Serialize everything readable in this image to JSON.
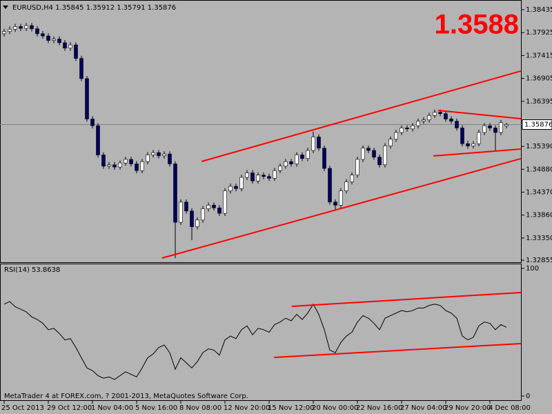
{
  "chart_data": {
    "type": "candlestick",
    "title": "EURUSD,H4  1.35845 1.35912 1.35791 1.35876",
    "big_label": "1.3588",
    "up_color": "#ffffff",
    "down_color": "#000060",
    "bid_color": "#808080",
    "trend_color": "#ff0000",
    "ylim": [
      1.3281,
      1.3862
    ],
    "yticks": [
      1.38435,
      1.37925,
      1.37415,
      1.36905,
      1.36395,
      {
        "value": 1.3539,
        "label": "1.35390"
      },
      {
        "value": 1.3488,
        "label": "1.34880"
      },
      {
        "value": 1.3437,
        "label": "1.34370"
      },
      {
        "value": 1.3386,
        "label": "1.33860"
      },
      {
        "value": 1.3335,
        "label": "1.33350"
      },
      1.32855
    ],
    "bid": 1.35876,
    "ohlc": [
      [
        1.379,
        1.3801,
        1.3784,
        1.3795
      ],
      [
        1.3795,
        1.3806,
        1.3789,
        1.38
      ],
      [
        1.38,
        1.3812,
        1.3794,
        1.3806
      ],
      [
        1.3806,
        1.3812,
        1.3796,
        1.3802
      ],
      [
        1.3802,
        1.3814,
        1.3796,
        1.3808
      ],
      [
        1.3808,
        1.3814,
        1.3795,
        1.3801
      ],
      [
        1.3801,
        1.3807,
        1.3784,
        1.379
      ],
      [
        1.379,
        1.3796,
        1.3779,
        1.3785
      ],
      [
        1.3785,
        1.3791,
        1.3769,
        1.3775
      ],
      [
        1.3775,
        1.3784,
        1.3769,
        1.3778
      ],
      [
        1.3778,
        1.3784,
        1.3764,
        1.377
      ],
      [
        1.377,
        1.3776,
        1.3752,
        1.3758
      ],
      [
        1.3758,
        1.3771,
        1.3752,
        1.3765
      ],
      [
        1.3765,
        1.3771,
        1.3729,
        1.3735
      ],
      [
        1.3735,
        1.3741,
        1.3684,
        1.369
      ],
      [
        1.369,
        1.3696,
        1.3594,
        1.36
      ],
      [
        1.36,
        1.3606,
        1.3579,
        1.3585
      ],
      [
        1.3585,
        1.3591,
        1.3514,
        1.352
      ],
      [
        1.352,
        1.3526,
        1.3489,
        1.3495
      ],
      [
        1.3495,
        1.3504,
        1.3489,
        1.3498
      ],
      [
        1.3498,
        1.3504,
        1.3487,
        1.3493
      ],
      [
        1.3493,
        1.3508,
        1.3487,
        1.3502
      ],
      [
        1.3502,
        1.3516,
        1.3496,
        1.351
      ],
      [
        1.351,
        1.3516,
        1.3494,
        1.35
      ],
      [
        1.35,
        1.3506,
        1.3479,
        1.3485
      ],
      [
        1.3485,
        1.3511,
        1.3479,
        1.3505
      ],
      [
        1.3505,
        1.3526,
        1.3499,
        1.352
      ],
      [
        1.352,
        1.3531,
        1.3514,
        1.3525
      ],
      [
        1.3525,
        1.3531,
        1.3512,
        1.3518
      ],
      [
        1.3518,
        1.3528,
        1.3512,
        1.3522
      ],
      [
        1.3522,
        1.3528,
        1.3494,
        1.35
      ],
      [
        1.35,
        1.3506,
        1.329,
        1.337
      ],
      [
        1.337,
        1.3421,
        1.3364,
        1.3415
      ],
      [
        1.3415,
        1.3421,
        1.3389,
        1.3395
      ],
      [
        1.3395,
        1.3401,
        1.333,
        1.336
      ],
      [
        1.336,
        1.3381,
        1.3354,
        1.3375
      ],
      [
        1.3375,
        1.3406,
        1.3369,
        1.34
      ],
      [
        1.34,
        1.3414,
        1.3394,
        1.3408
      ],
      [
        1.3408,
        1.3414,
        1.3396,
        1.3402
      ],
      [
        1.3402,
        1.3408,
        1.3384,
        1.339
      ],
      [
        1.339,
        1.3446,
        1.3384,
        1.344
      ],
      [
        1.344,
        1.3456,
        1.3434,
        1.345
      ],
      [
        1.345,
        1.3456,
        1.3439,
        1.3445
      ],
      [
        1.3445,
        1.3476,
        1.3439,
        1.347
      ],
      [
        1.347,
        1.3486,
        1.3464,
        1.348
      ],
      [
        1.348,
        1.3486,
        1.3456,
        1.3462
      ],
      [
        1.3462,
        1.3481,
        1.3456,
        1.3475
      ],
      [
        1.3475,
        1.3481,
        1.3466,
        1.3472
      ],
      [
        1.3472,
        1.3478,
        1.3462,
        1.3468
      ],
      [
        1.3468,
        1.3491,
        1.3462,
        1.3485
      ],
      [
        1.3485,
        1.3501,
        1.3479,
        1.3495
      ],
      [
        1.3495,
        1.3511,
        1.3489,
        1.3505
      ],
      [
        1.3505,
        1.3511,
        1.3494,
        1.35
      ],
      [
        1.35,
        1.3526,
        1.3494,
        1.352
      ],
      [
        1.352,
        1.3526,
        1.3506,
        1.3512
      ],
      [
        1.3512,
        1.3536,
        1.3506,
        1.353
      ],
      [
        1.353,
        1.3572,
        1.3524,
        1.356
      ],
      [
        1.356,
        1.3566,
        1.3529,
        1.3535
      ],
      [
        1.3535,
        1.3541,
        1.3484,
        1.349
      ],
      [
        1.349,
        1.3496,
        1.3409,
        1.3415
      ],
      [
        1.3415,
        1.3421,
        1.3398,
        1.3408
      ],
      [
        1.3408,
        1.3446,
        1.3402,
        1.344
      ],
      [
        1.344,
        1.3466,
        1.3434,
        1.346
      ],
      [
        1.346,
        1.3481,
        1.3454,
        1.3475
      ],
      [
        1.3475,
        1.3516,
        1.3469,
        1.351
      ],
      [
        1.351,
        1.3541,
        1.3504,
        1.3535
      ],
      [
        1.3535,
        1.3541,
        1.3524,
        1.353
      ],
      [
        1.353,
        1.3536,
        1.3509,
        1.3515
      ],
      [
        1.3515,
        1.3521,
        1.3492,
        1.3498
      ],
      [
        1.3498,
        1.3546,
        1.3492,
        1.354
      ],
      [
        1.354,
        1.3561,
        1.3534,
        1.3555
      ],
      [
        1.3555,
        1.3576,
        1.3549,
        1.357
      ],
      [
        1.357,
        1.3586,
        1.3564,
        1.358
      ],
      [
        1.358,
        1.3586,
        1.3572,
        1.3578
      ],
      [
        1.3578,
        1.3591,
        1.3572,
        1.3585
      ],
      [
        1.3585,
        1.3601,
        1.3579,
        1.3595
      ],
      [
        1.3595,
        1.3604,
        1.3589,
        1.3598
      ],
      [
        1.3598,
        1.3614,
        1.3592,
        1.3608
      ],
      [
        1.3608,
        1.3621,
        1.3602,
        1.3615
      ],
      [
        1.3615,
        1.3621,
        1.3606,
        1.3612
      ],
      [
        1.3612,
        1.3618,
        1.3594,
        1.36
      ],
      [
        1.36,
        1.3606,
        1.3589,
        1.3595
      ],
      [
        1.3595,
        1.3601,
        1.3574,
        1.358
      ],
      [
        1.358,
        1.3586,
        1.3539,
        1.3545
      ],
      [
        1.3545,
        1.3551,
        1.3534,
        1.354
      ],
      [
        1.354,
        1.3551,
        1.3534,
        1.3545
      ],
      [
        1.3545,
        1.3576,
        1.3539,
        1.357
      ],
      [
        1.357,
        1.3591,
        1.3564,
        1.3585
      ],
      [
        1.3585,
        1.3591,
        1.3574,
        1.358
      ],
      [
        1.358,
        1.3586,
        1.353,
        1.357
      ],
      [
        1.357,
        1.3598,
        1.3564,
        1.3592
      ],
      [
        1.35845,
        1.35912,
        1.35791,
        1.35876
      ]
    ],
    "trendlines": [
      [
        28.6,
        1.32902,
        93.6,
        1.35116
      ],
      [
        35.75,
        1.35054,
        93.6,
        1.37068
      ],
      [
        77.75,
        1.35177,
        93.6,
        1.35331
      ],
      [
        78.6,
        1.36191,
        93.6,
        1.36007
      ]
    ],
    "x_labels": [
      {
        "value": 0,
        "label": "25 Oct 2013"
      },
      {
        "value": 8,
        "label": "29 Oct 12:00"
      },
      {
        "value": 16,
        "label": "1 Nov 04:00"
      },
      {
        "value": 24,
        "label": "5 Nov 16:00"
      },
      {
        "value": 32,
        "label": "8 Nov 08:00"
      },
      {
        "value": 40,
        "label": "12 Nov 20:00"
      },
      {
        "value": 48,
        "label": "15 Nov 12:00"
      },
      {
        "value": 56,
        "label": "20 Nov 00:00"
      },
      {
        "value": 64,
        "label": "22 Nov 16:00"
      },
      {
        "value": 72,
        "label": "27 Nov 04:00"
      },
      {
        "value": 80,
        "label": "29 Nov 20:00"
      },
      {
        "value": 88,
        "label": "4 Dec 08:00"
      }
    ],
    "rsi": {
      "title": "RSI(14) 53.8638",
      "color": "#000000",
      "ylim": [
        0,
        100
      ],
      "yticks": [
        100,
        0
      ],
      "values": [
        72,
        74,
        70,
        68,
        66,
        62,
        60,
        57,
        52,
        53,
        49,
        44,
        45,
        38,
        30,
        22,
        20,
        16,
        14,
        15,
        13,
        16,
        19,
        17,
        15,
        22,
        30,
        33,
        38,
        40,
        34,
        21,
        30,
        26,
        22,
        27,
        34,
        37,
        36,
        32,
        44,
        47,
        45,
        52,
        55,
        48,
        53,
        52,
        50,
        56,
        58,
        61,
        59,
        64,
        60,
        65,
        72,
        64,
        52,
        36,
        34,
        42,
        47,
        50,
        58,
        63,
        61,
        57,
        52,
        61,
        63,
        65,
        67,
        66,
        67,
        69,
        69,
        71,
        72,
        71,
        67,
        65,
        61,
        47,
        44,
        46,
        55,
        58,
        57,
        52,
        56,
        53.8638
      ],
      "trendlines": [
        [
          52.1,
          70.3,
          93.6,
          81.1
        ],
        [
          48.9,
          30.3,
          93.6,
          41.1
        ]
      ]
    },
    "copyright": "MetaTrader 4 at FOREX.com, ? 2001-2013, MetaQuotes Software Corp."
  }
}
